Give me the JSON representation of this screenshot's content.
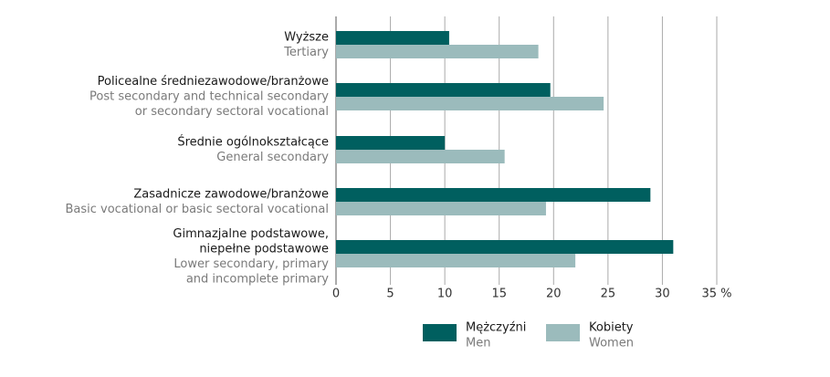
{
  "chart_data": {
    "type": "bar",
    "orientation": "horizontal",
    "categories": [
      {
        "pl": [
          "Wyższe"
        ],
        "en": [
          "Tertiary"
        ]
      },
      {
        "pl": [
          "Policealne średniezawodowe/branżowe"
        ],
        "en": [
          "Post secondary and technical secondary",
          "or secondary sectoral vocational"
        ]
      },
      {
        "pl": [
          "Średnie ogólnokształcące"
        ],
        "en": [
          "General secondary"
        ]
      },
      {
        "pl": [
          "Zasadnicze zawodowe/branżowe"
        ],
        "en": [
          "Basic vocational or basic sectoral vocational"
        ]
      },
      {
        "pl": [
          "Gimnazjalne podstawowe,",
          "niepełne podstawowe"
        ],
        "en": [
          "Lower secondary, primary",
          "and incomplete primary"
        ]
      }
    ],
    "series": [
      {
        "name": "Mężczyźni",
        "name_en": "Men",
        "color": "#005f5f",
        "values": [
          10.4,
          19.7,
          10.0,
          28.9,
          31.0
        ]
      },
      {
        "name": "Kobiety",
        "name_en": "Women",
        "color": "#9bbbbc",
        "values": [
          18.6,
          24.6,
          15.5,
          19.3,
          22.0
        ]
      }
    ],
    "xlim": [
      0,
      35
    ],
    "xticks": [
      0,
      5,
      10,
      15,
      20,
      25,
      30,
      {
        "value": 35,
        "label": "35 %"
      }
    ],
    "grid": true
  }
}
